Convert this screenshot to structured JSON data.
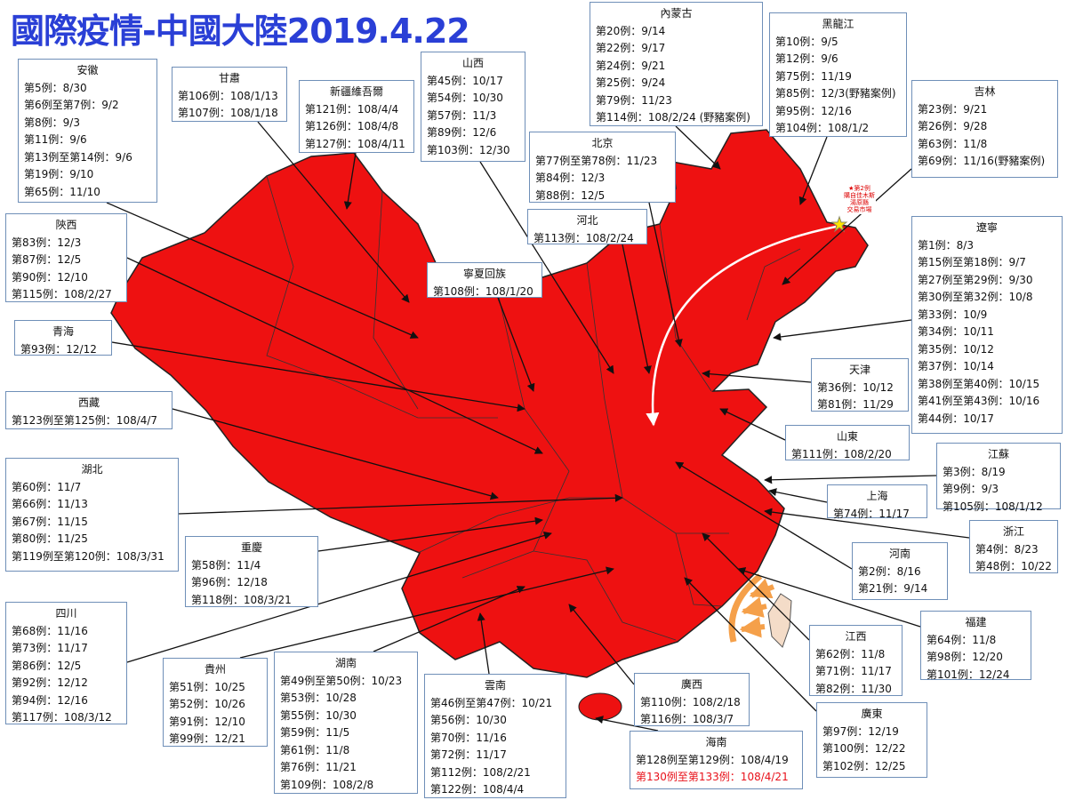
{
  "header": {
    "title": "國際疫情-中國大陸2019.4.22"
  },
  "note": [
    "★第2例",
    "購自佳木斯",
    "湯原縣",
    "交易市場"
  ],
  "boxes": [
    {
      "title": "安徽",
      "lines": [
        "第5例：8/30",
        "第6例至第7例：9/2",
        "第8例：9/3",
        "第11例：9/6",
        "第13例至第14例：9/6",
        "第19例：9/10",
        "第65例：11/10"
      ]
    },
    {
      "title": "甘肅",
      "lines": [
        "第106例：108/1/13",
        "第107例：108/1/18"
      ]
    },
    {
      "title": "新疆維吾爾",
      "lines": [
        "第121例：108/4/4",
        "第126例：108/4/8",
        "第127例：108/4/11"
      ]
    },
    {
      "title": "山西",
      "lines": [
        "第45例：10/17",
        "第54例：10/30",
        "第57例：11/3",
        "第89例：12/6",
        "第103例：12/30"
      ]
    },
    {
      "title": "內蒙古",
      "lines": [
        "第20例：9/14",
        "第22例：9/17",
        "第24例：9/21",
        "第25例：9/24",
        "第79例：11/23",
        "第114例：108/2/24 (野豬案例)"
      ]
    },
    {
      "title": "黑龍江",
      "lines": [
        "第10例：9/5",
        "第12例：9/6",
        "第75例：11/19",
        "第85例：12/3(野豬案例)",
        "第95例：12/16",
        "第104例：108/1/2"
      ]
    },
    {
      "title": "吉林",
      "lines": [
        "第23例：9/21",
        "第26例：9/28",
        "第63例：11/8",
        "第69例：11/16(野豬案例)"
      ]
    },
    {
      "title": "北京",
      "lines": [
        "第77例至第78例：11/23",
        "第84例：12/3",
        "第88例：12/5"
      ]
    },
    {
      "title": "河北",
      "lines": [
        "第113例：108/2/24"
      ]
    },
    {
      "title": "陝西",
      "lines": [
        "第83例：12/3",
        "第87例：12/5",
        "第90例：12/10",
        "第115例：108/2/27"
      ]
    },
    {
      "title": "寧夏回族",
      "lines": [
        "第108例：108/1/20"
      ]
    },
    {
      "title": "青海",
      "lines": [
        "第93例：12/12"
      ]
    },
    {
      "title": "遼寧",
      "lines": [
        "第1例：8/3",
        "第15例至第18例：9/7",
        "第27例至第29例：9/30",
        "第30例至第32例：10/8",
        "第33例：10/9",
        "第34例：10/11",
        "第35例：10/12",
        "第37例：10/14",
        "第38例至第40例：10/15",
        "第41例至第43例：10/16",
        "第44例：10/17"
      ]
    },
    {
      "title": "西藏",
      "lines": [
        "第123例至第125例：108/4/7"
      ]
    },
    {
      "title": "天津",
      "lines": [
        "第36例：10/12",
        "第81例：11/29"
      ]
    },
    {
      "title": "山東",
      "lines": [
        "第111例：108/2/20"
      ]
    },
    {
      "title": "湖北",
      "lines": [
        "第60例：11/7",
        "第66例：11/13",
        "第67例：11/15",
        "第80例：11/25",
        "第119例至第120例：108/3/31"
      ]
    },
    {
      "title": "江蘇",
      "lines": [
        "第3例：8/19",
        "第9例：9/3",
        "第105例：108/1/12"
      ]
    },
    {
      "title": "上海",
      "lines": [
        "第74例：11/17"
      ]
    },
    {
      "title": "浙江",
      "lines": [
        "第4例：8/23",
        "第48例：10/22"
      ]
    },
    {
      "title": "重慶",
      "lines": [
        "第58例：11/4",
        "第96例：12/18",
        "第118例：108/3/21"
      ]
    },
    {
      "title": "河南",
      "lines": [
        "第2例：8/16",
        "第21例：9/14"
      ]
    },
    {
      "title": "四川",
      "lines": [
        "第68例：11/16",
        "第73例：11/17",
        "第86例：12/5",
        "第92例：12/12",
        "第94例：12/16",
        "第117例：108/3/12"
      ]
    },
    {
      "title": "福建",
      "lines": [
        "第64例：11/8",
        "第98例：12/20",
        "第101例：12/24"
      ]
    },
    {
      "title": "貴州",
      "lines": [
        "第51例：10/25",
        "第52例：10/26",
        "第91例：12/10",
        "第99例：12/21"
      ]
    },
    {
      "title": "湖南",
      "lines": [
        "第49例至第50例：10/23",
        "第53例：10/28",
        "第55例：10/30",
        "第59例：11/5",
        "第61例：11/8",
        "第76例：11/21",
        "第109例：108/2/8"
      ]
    },
    {
      "title": "江西",
      "lines": [
        "第62例：11/8",
        "第71例：11/17",
        "第82例：11/30"
      ]
    },
    {
      "title": "雲南",
      "lines": [
        "第46例至第47例：10/21",
        "第56例：10/30",
        "第70例：11/16",
        "第72例：11/17",
        "第112例：108/2/21",
        "第122例：108/4/4"
      ]
    },
    {
      "title": "廣西",
      "lines": [
        "第110例：108/2/18",
        "第116例：108/3/7"
      ]
    },
    {
      "title": "廣東",
      "lines": [
        "第97例：12/19",
        "第100例：12/22",
        "第102例：12/25"
      ]
    },
    {
      "title": "海南",
      "lines": [
        "第128例至第129例：108/4/19",
        {
          "text": "第130例至第133例：108/4/21",
          "color": "#e8111a"
        }
      ]
    }
  ]
}
